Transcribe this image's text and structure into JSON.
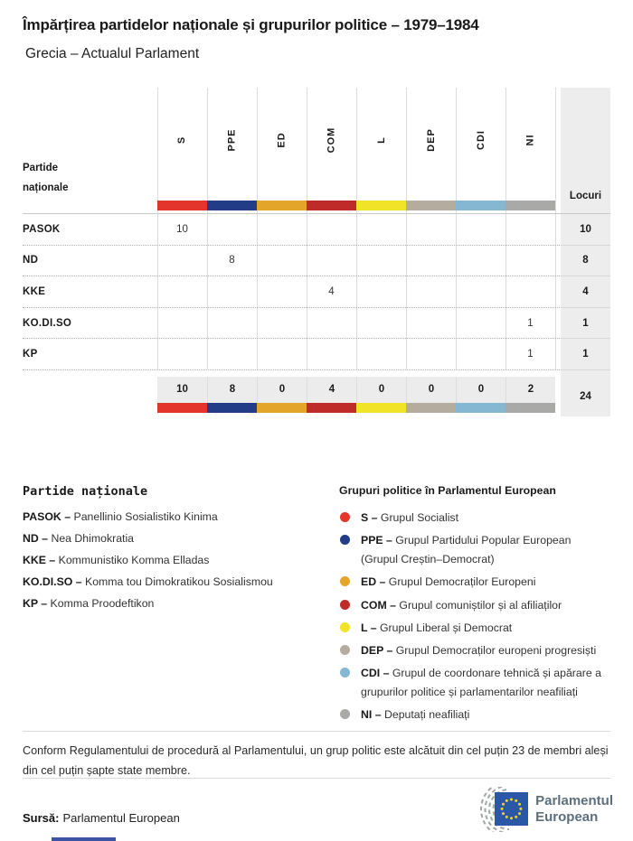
{
  "title": "Împărțirea partidelor naționale și grupurilor politice – 1979–1984",
  "subtitle": "Grecia – Actualul Parlament",
  "table": {
    "row_header": "Partide naționale",
    "seats_label": "Locuri",
    "groups": [
      {
        "code": "S",
        "color": "#e4352c"
      },
      {
        "code": "PPE",
        "color": "#233c87"
      },
      {
        "code": "ED",
        "color": "#e3a52a"
      },
      {
        "code": "COM",
        "color": "#bf2b28"
      },
      {
        "code": "L",
        "color": "#f1e327"
      },
      {
        "code": "DEP",
        "color": "#b4ad9f"
      },
      {
        "code": "CDI",
        "color": "#86b7d2"
      },
      {
        "code": "NI",
        "color": "#a9a9a7"
      }
    ],
    "rows": [
      {
        "party": "PASOK",
        "values": [
          "10",
          "",
          "",
          "",
          "",
          "",
          "",
          ""
        ],
        "seats": "10"
      },
      {
        "party": "ND",
        "values": [
          "",
          "8",
          "",
          "",
          "",
          "",
          "",
          ""
        ],
        "seats": "8"
      },
      {
        "party": "KKE",
        "values": [
          "",
          "",
          "",
          "4",
          "",
          "",
          "",
          ""
        ],
        "seats": "4"
      },
      {
        "party": "KO.DI.SO",
        "values": [
          "",
          "",
          "",
          "",
          "",
          "",
          "",
          "1"
        ],
        "seats": "1"
      },
      {
        "party": "KP",
        "values": [
          "",
          "",
          "",
          "",
          "",
          "",
          "",
          "1"
        ],
        "seats": "1"
      }
    ],
    "totals": {
      "values": [
        "10",
        "8",
        "0",
        "4",
        "0",
        "0",
        "0",
        "2"
      ],
      "seats": "24"
    }
  },
  "party_legend": {
    "heading": "Partide naționale",
    "items": [
      {
        "abbr": "PASOK",
        "name": "Panellinio Sosialistiko Kinima"
      },
      {
        "abbr": "ND",
        "name": "Nea Dhimokratia"
      },
      {
        "abbr": "KKE",
        "name": "Kommunistiko Komma Elladas"
      },
      {
        "abbr": "KO.DI.SO",
        "name": "Komma tou Dimokratikou Sosialismou"
      },
      {
        "abbr": "KP",
        "name": "Komma Proodeftikon"
      }
    ]
  },
  "group_legend": {
    "heading": "Grupuri politice în Parlamentul European",
    "items": [
      {
        "abbr": "S",
        "color": "#e4352c",
        "name": "Grupul Socialist"
      },
      {
        "abbr": "PPE",
        "color": "#233c87",
        "name": "Grupul Partidului Popular European (Grupul Creștin–Democrat)"
      },
      {
        "abbr": "ED",
        "color": "#e3a52a",
        "name": "Grupul Democraților Europeni"
      },
      {
        "abbr": "COM",
        "color": "#bf2b28",
        "name": "Grupul comuniștilor și al afiliaților"
      },
      {
        "abbr": "L",
        "color": "#f1e327",
        "name": "Grupul Liberal și Democrat"
      },
      {
        "abbr": "DEP",
        "color": "#b4ad9f",
        "name": "Grupul Democraților europeni progresiști"
      },
      {
        "abbr": "CDI",
        "color": "#86b7d2",
        "name": "Grupul de coordonare tehnică și apărare a grupurilor politice și parlamentarilor neafiliați"
      },
      {
        "abbr": "NI",
        "color": "#a9a9a7",
        "name": "Deputați neafiliați"
      }
    ]
  },
  "footnote": "Conform Regulamentului de procedură al Parlamentului, un grup politic este alcătuit din cel puțin 23 de membri aleși din cel puțin șapte state membre.",
  "source": {
    "label": "Sursă:",
    "text": "Parlamentul European"
  },
  "logo": {
    "line1": "Parlamentul",
    "line2": "European"
  },
  "chart_data": {
    "type": "table",
    "title": "Împărțirea partidelor naționale și grupurilor politice – 1979–1984",
    "subtitle": "Grecia – Actualul Parlament",
    "columns": [
      "S",
      "PPE",
      "ED",
      "COM",
      "L",
      "DEP",
      "CDI",
      "NI",
      "Locuri"
    ],
    "rows": [
      {
        "party": "PASOK",
        "group": "S",
        "seats": 10
      },
      {
        "party": "ND",
        "group": "PPE",
        "seats": 8
      },
      {
        "party": "KKE",
        "group": "COM",
        "seats": 4
      },
      {
        "party": "KO.DI.SO",
        "group": "NI",
        "seats": 1
      },
      {
        "party": "KP",
        "group": "NI",
        "seats": 1
      }
    ],
    "totals": {
      "S": 10,
      "PPE": 8,
      "ED": 0,
      "COM": 4,
      "L": 0,
      "DEP": 0,
      "CDI": 0,
      "NI": 2,
      "Locuri": 24
    }
  }
}
